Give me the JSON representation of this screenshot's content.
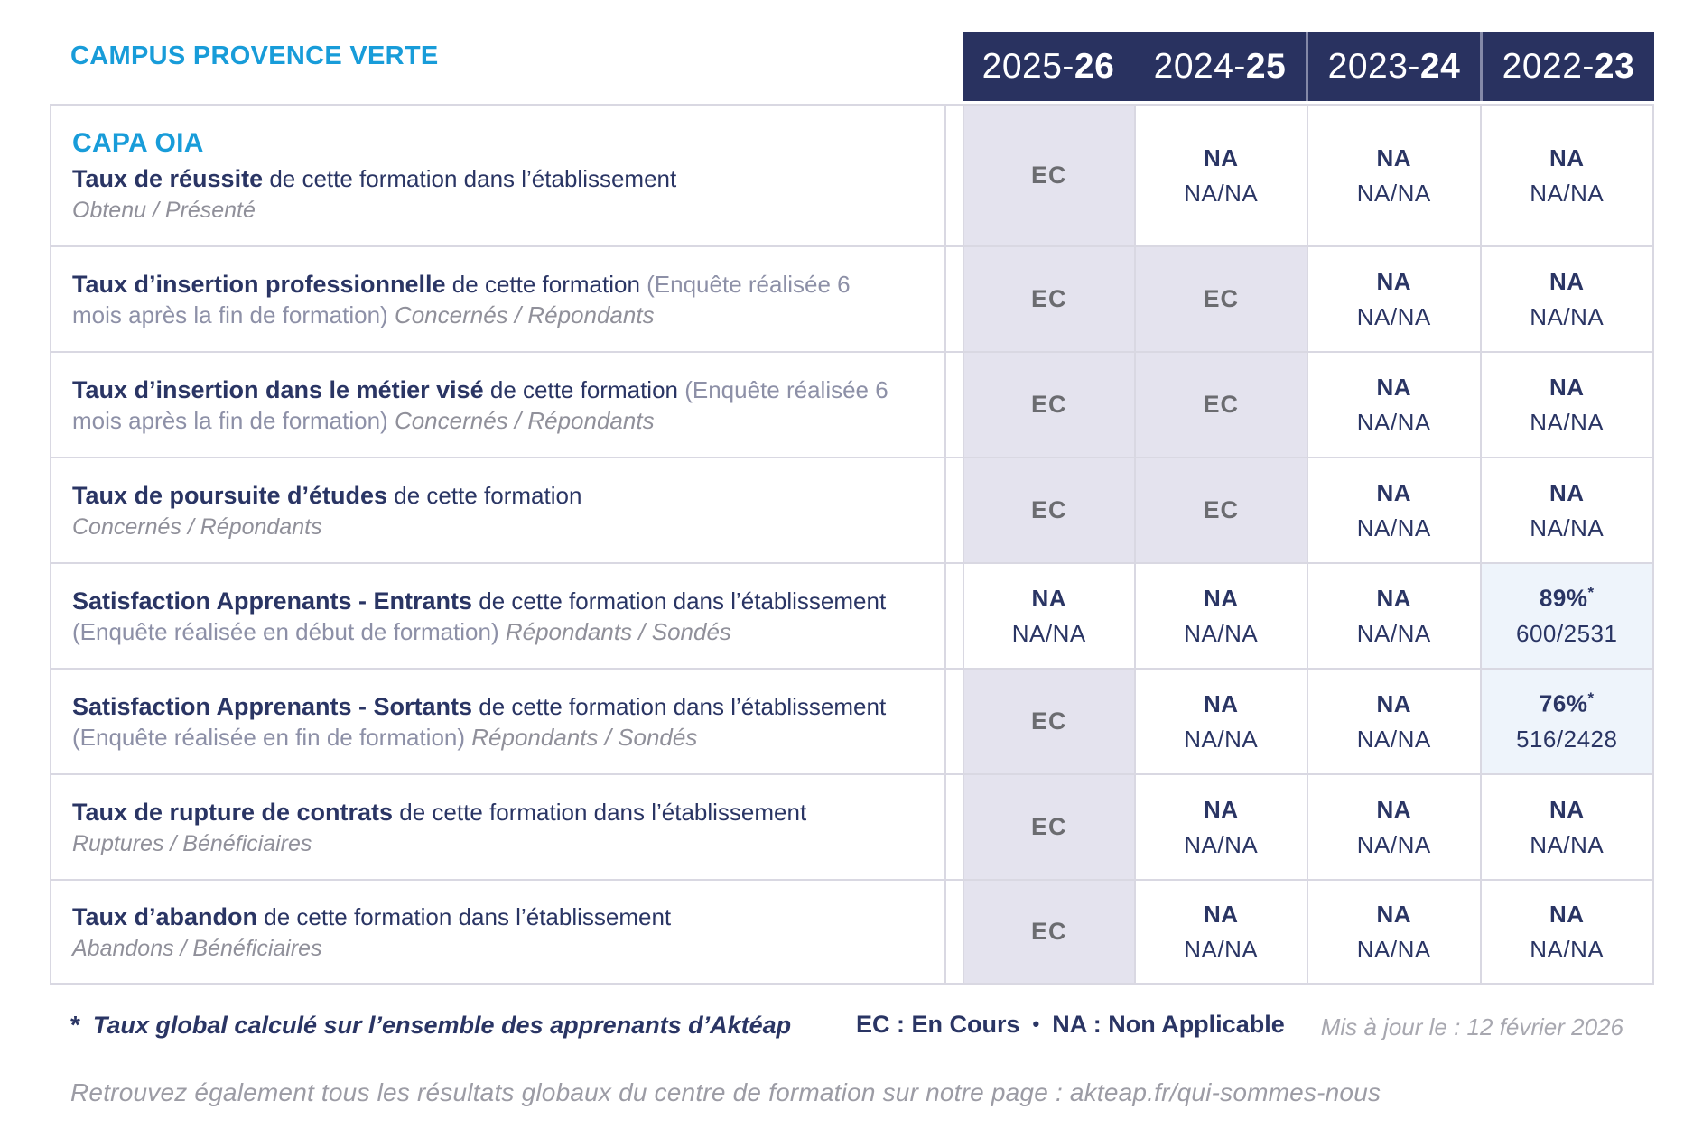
{
  "header": {
    "campus": "CAMPUS PROVENCE VERTE",
    "years": [
      {
        "prefix": "2025-",
        "suffix": "26"
      },
      {
        "prefix": "2024-",
        "suffix": "25"
      },
      {
        "prefix": "2023-",
        "suffix": "24"
      },
      {
        "prefix": "2022-",
        "suffix": "23"
      }
    ]
  },
  "program": "CAPA OIA",
  "rows": [
    {
      "title": "Taux de réussite",
      "desc": " de cette formation dans l’établissement",
      "tail": "Obtenu / Présenté",
      "cells": [
        {
          "type": "ec",
          "main": "EC"
        },
        {
          "type": "na",
          "main": "NA",
          "sub": "NA/NA"
        },
        {
          "type": "na",
          "main": "NA",
          "sub": "NA/NA"
        },
        {
          "type": "na",
          "main": "NA",
          "sub": "NA/NA"
        }
      ]
    },
    {
      "title": "Taux d’insertion professionnelle",
      "desc": " de cette formation ",
      "paren": "(Enquête réalisée 6 mois après la fin de formation) ",
      "tail": "Concernés / Répondants",
      "cells": [
        {
          "type": "ec",
          "main": "EC"
        },
        {
          "type": "ec",
          "main": "EC"
        },
        {
          "type": "na",
          "main": "NA",
          "sub": "NA/NA"
        },
        {
          "type": "na",
          "main": "NA",
          "sub": "NA/NA"
        }
      ]
    },
    {
      "title": "Taux d’insertion dans le métier visé",
      "desc": " de cette formation ",
      "paren": "(Enquête réalisée 6 mois après la fin de formation) ",
      "tail": "Concernés / Répondants",
      "cells": [
        {
          "type": "ec",
          "main": "EC"
        },
        {
          "type": "ec",
          "main": "EC"
        },
        {
          "type": "na",
          "main": "NA",
          "sub": "NA/NA"
        },
        {
          "type": "na",
          "main": "NA",
          "sub": "NA/NA"
        }
      ]
    },
    {
      "title": "Taux de poursuite d’études",
      "desc": " de cette formation",
      "tail": "Concernés / Répondants",
      "cells": [
        {
          "type": "ec",
          "main": "EC"
        },
        {
          "type": "ec",
          "main": "EC"
        },
        {
          "type": "na",
          "main": "NA",
          "sub": "NA/NA"
        },
        {
          "type": "na",
          "main": "NA",
          "sub": "NA/NA"
        }
      ]
    },
    {
      "title": "Satisfaction Apprenants - Entrants",
      "desc": " de cette formation dans l’établissement ",
      "paren": "(Enquête réalisée en début de formation) ",
      "tail": "Répondants / Sondés",
      "cells": [
        {
          "type": "na",
          "main": "NA",
          "sub": "NA/NA"
        },
        {
          "type": "na",
          "main": "NA",
          "sub": "NA/NA"
        },
        {
          "type": "na",
          "main": "NA",
          "sub": "NA/NA"
        },
        {
          "type": "pct",
          "main": "89%",
          "star": "*",
          "sub": "600/2531"
        }
      ]
    },
    {
      "title": "Satisfaction Apprenants - Sortants",
      "desc": " de cette formation dans l’établissement ",
      "paren": "(Enquête réalisée en fin de formation) ",
      "tail": "Répondants / Sondés",
      "cells": [
        {
          "type": "ec",
          "main": "EC"
        },
        {
          "type": "na",
          "main": "NA",
          "sub": "NA/NA"
        },
        {
          "type": "na",
          "main": "NA",
          "sub": "NA/NA"
        },
        {
          "type": "pct",
          "main": "76%",
          "star": "*",
          "sub": "516/2428"
        }
      ]
    },
    {
      "title": "Taux de rupture de contrats",
      "desc": " de cette formation dans l’établissement",
      "tail": "Ruptures / Bénéficiaires",
      "cells": [
        {
          "type": "ec",
          "main": "EC"
        },
        {
          "type": "na",
          "main": "NA",
          "sub": "NA/NA"
        },
        {
          "type": "na",
          "main": "NA",
          "sub": "NA/NA"
        },
        {
          "type": "na",
          "main": "NA",
          "sub": "NA/NA"
        }
      ]
    },
    {
      "title": "Taux d’abandon",
      "desc": " de cette formation dans l’établissement",
      "tail": "Abandons / Bénéficiaires",
      "cells": [
        {
          "type": "ec",
          "main": "EC"
        },
        {
          "type": "na",
          "main": "NA",
          "sub": "NA/NA"
        },
        {
          "type": "na",
          "main": "NA",
          "sub": "NA/NA"
        },
        {
          "type": "na",
          "main": "NA",
          "sub": "NA/NA"
        }
      ]
    }
  ],
  "footer": {
    "star": "*",
    "footnote": "Taux global calculé sur l’ensemble des apprenants d’Aktéap",
    "legend_ec": "EC : En Cours",
    "legend_sep": "•",
    "legend_na": "NA : Non Applicable",
    "updated": "Mis à jour le : 12 février 2026",
    "bottom_note": "Retrouvez également tous les résultats globaux du centre de formation sur notre page : akteap.fr/qui-sommes-nous"
  },
  "colors": {
    "accent_blue": "#189CD9",
    "navy": "#2A3564",
    "header_bg": "#293260",
    "ec_cell_bg": "#E4E3EE",
    "pct_cell_bg": "#EEF4FB",
    "border": "#D9D8E2"
  }
}
